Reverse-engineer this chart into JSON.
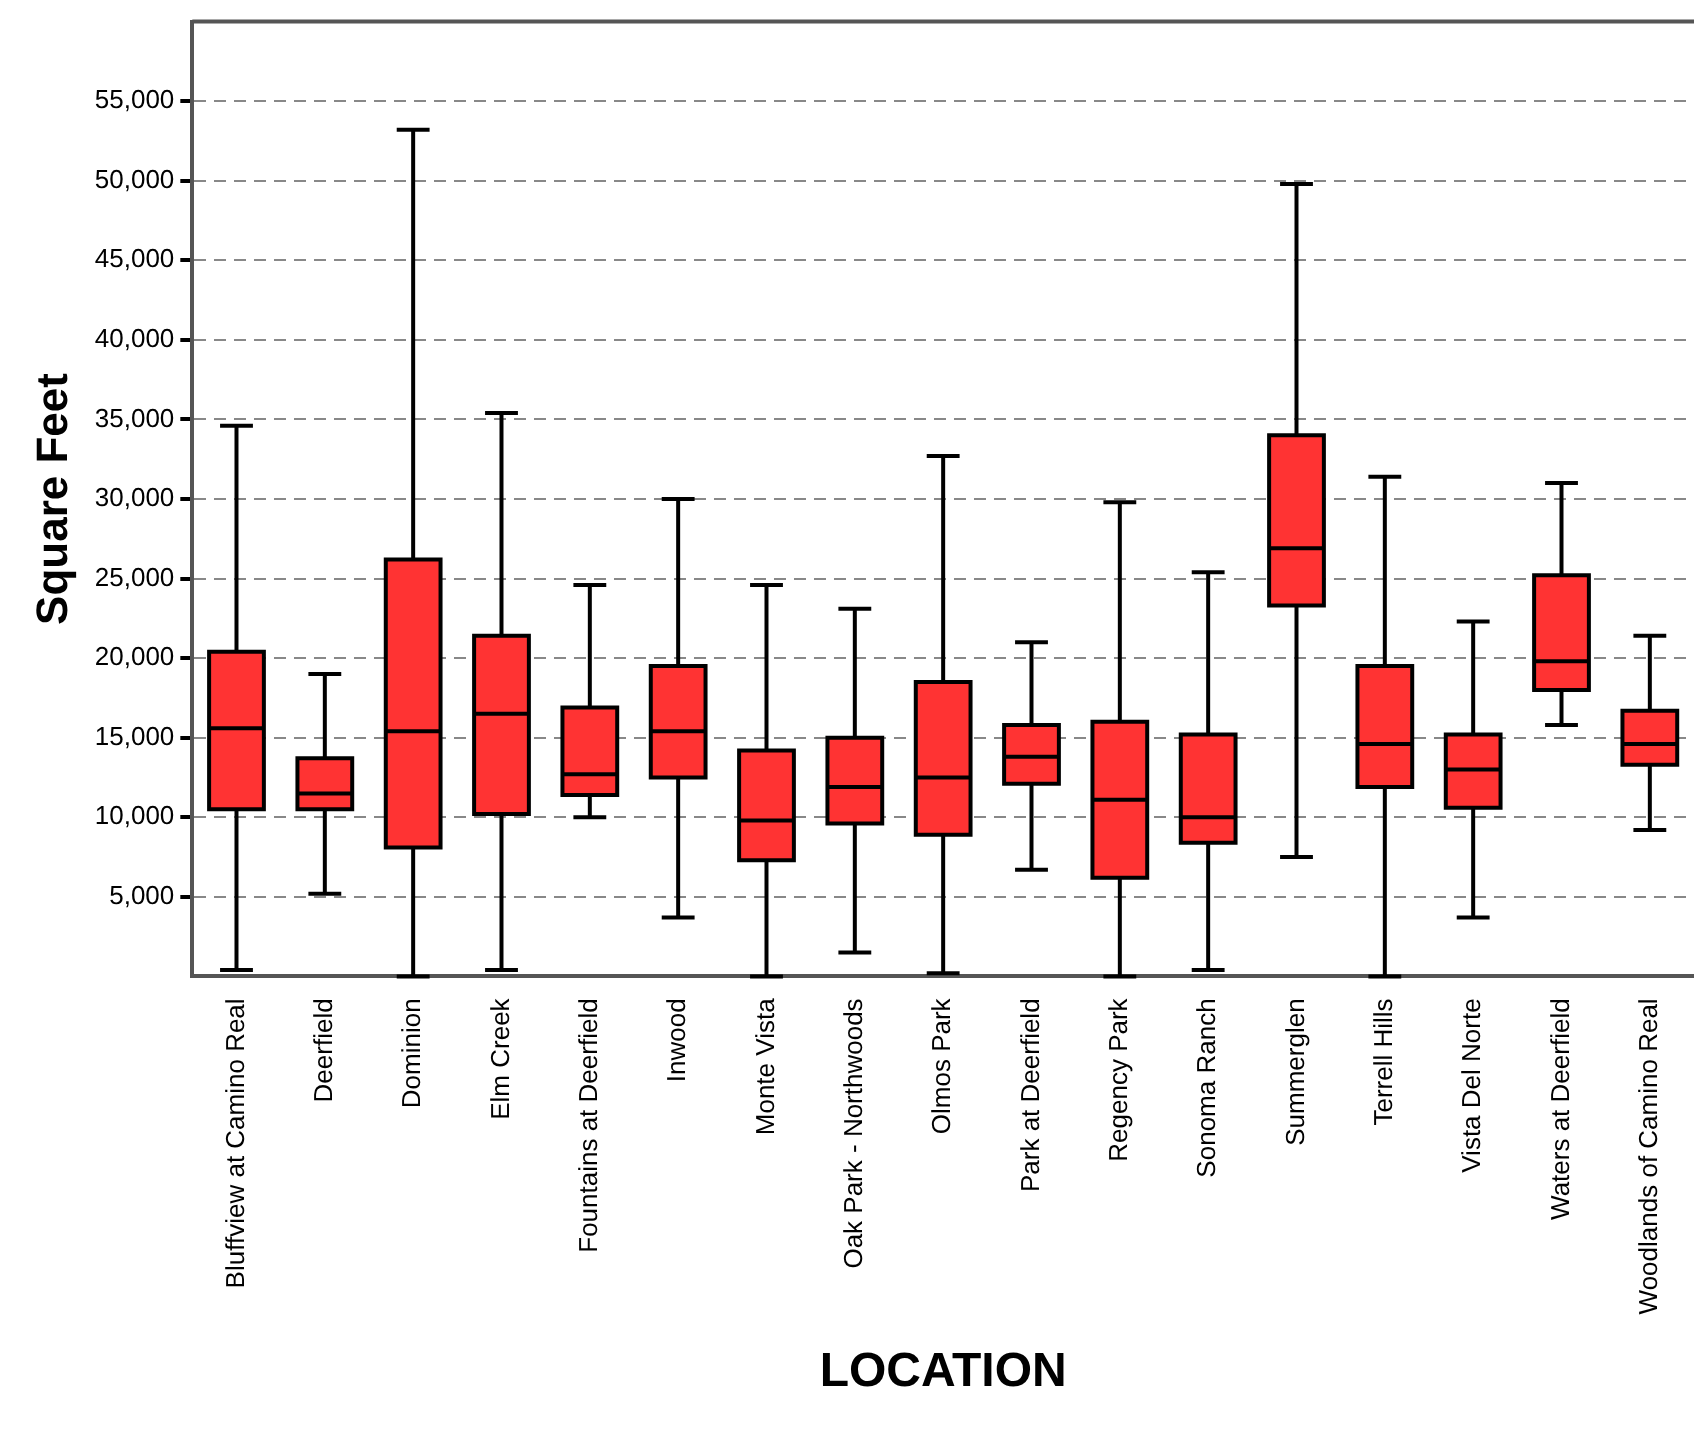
{
  "chart_data": {
    "type": "box",
    "xlabel": "LOCATION",
    "ylabel": "Square Feet",
    "color": "#ff3333",
    "grid": "y",
    "categories": [
      "Bluffview at Camino Real",
      "Deerfield",
      "Dominion",
      "Elm Creek",
      "Fountains at Deerfield",
      "Inwood",
      "Monte Vista",
      "Oak Park - Northwoods",
      "Olmos Park",
      "Park at Deerfield",
      "Regency Park",
      "Sonoma Ranch",
      "Summerglen",
      "Terrell Hills",
      "Vista Del Norte",
      "Waters at Deerfield",
      "Woodlands of Camino Real"
    ],
    "boxes": [
      {
        "low": 400,
        "q1": 10500,
        "median": 15600,
        "q3": 20400,
        "high": 34600
      },
      {
        "low": 5200,
        "q1": 10500,
        "median": 11500,
        "q3": 13700,
        "high": 19000
      },
      {
        "low": 0,
        "q1": 8100,
        "median": 15400,
        "q3": 26200,
        "high": 53200
      },
      {
        "low": 400,
        "q1": 10200,
        "median": 16500,
        "q3": 21400,
        "high": 35400
      },
      {
        "low": 10000,
        "q1": 11400,
        "median": 12700,
        "q3": 16900,
        "high": 24600
      },
      {
        "low": 3700,
        "q1": 12500,
        "median": 15400,
        "q3": 19500,
        "high": 30000
      },
      {
        "low": 0,
        "q1": 7300,
        "median": 9800,
        "q3": 14200,
        "high": 24600
      },
      {
        "low": 1500,
        "q1": 9600,
        "median": 11900,
        "q3": 15000,
        "high": 23100
      },
      {
        "low": 200,
        "q1": 8900,
        "median": 12500,
        "q3": 18500,
        "high": 32700
      },
      {
        "low": 6700,
        "q1": 12100,
        "median": 13800,
        "q3": 15800,
        "high": 21000
      },
      {
        "low": 0,
        "q1": 6200,
        "median": 11100,
        "q3": 16000,
        "high": 29800
      },
      {
        "low": 400,
        "q1": 8400,
        "median": 10000,
        "q3": 15200,
        "high": 25400
      },
      {
        "low": 7500,
        "q1": 23300,
        "median": 26900,
        "q3": 34000,
        "high": 49800
      },
      {
        "low": 0,
        "q1": 11900,
        "median": 14600,
        "q3": 19500,
        "high": 31400
      },
      {
        "low": 3700,
        "q1": 10600,
        "median": 13000,
        "q3": 15200,
        "high": 22300
      },
      {
        "low": 15800,
        "q1": 18000,
        "median": 19800,
        "q3": 25200,
        "high": 31000
      },
      {
        "low": 9200,
        "q1": 13300,
        "median": 14600,
        "q3": 16700,
        "high": 21400
      }
    ],
    "ylim": [
      0,
      60000
    ],
    "yticks": [
      {
        "value": 5000,
        "label": "5,000"
      },
      {
        "value": 10000,
        "label": "10,000"
      },
      {
        "value": 15000,
        "label": "15,000"
      },
      {
        "value": 20000,
        "label": "20,000"
      },
      {
        "value": 25000,
        "label": "25,000"
      },
      {
        "value": 30000,
        "label": "30,000"
      },
      {
        "value": 35000,
        "label": "35,000"
      },
      {
        "value": 40000,
        "label": "40,000"
      },
      {
        "value": 45000,
        "label": "45,000"
      },
      {
        "value": 50000,
        "label": "50,000"
      },
      {
        "value": 55000,
        "label": "55,000"
      }
    ]
  }
}
